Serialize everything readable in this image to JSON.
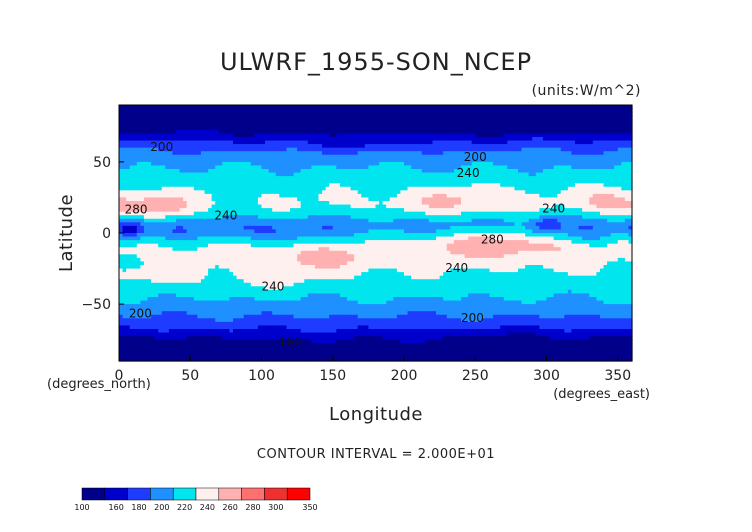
{
  "chart_data": {
    "type": "heatmap",
    "title": "ULWRF_1955-SON_NCEP",
    "units_label": "(units:W/m^2)",
    "xlabel": "Longitude",
    "ylabel": "Latitude",
    "x_unit_label": "(degrees_east)",
    "y_unit_label": "(degrees_north)",
    "xlim": [
      0,
      360
    ],
    "ylim": [
      -90,
      90
    ],
    "x_ticks": [
      0,
      50,
      100,
      150,
      200,
      250,
      300,
      350
    ],
    "y_ticks": [
      -50,
      0,
      50
    ],
    "contour_interval_text": "CONTOUR INTERVAL = 2.000E+01",
    "colorbar": {
      "levels": [
        100,
        160,
        180,
        200,
        220,
        240,
        260,
        280,
        300,
        350
      ],
      "colors": [
        "#00008b",
        "#0000cd",
        "#1e3cff",
        "#1e90ff",
        "#00e5ee",
        "#fff0f0",
        "#ffb0b0",
        "#ff7070",
        "#ee3030",
        "#ff0000"
      ]
    },
    "contour_labels": [
      {
        "text": "200",
        "lon": 30,
        "lat": 60
      },
      {
        "text": "200",
        "lon": 250,
        "lat": 53
      },
      {
        "text": "240",
        "lon": 245,
        "lat": 42
      },
      {
        "text": "280",
        "lon": 12,
        "lat": 16
      },
      {
        "text": "240",
        "lon": 75,
        "lat": 12
      },
      {
        "text": "240",
        "lon": 305,
        "lat": 17
      },
      {
        "text": "280",
        "lon": 262,
        "lat": -5
      },
      {
        "text": "240",
        "lon": 237,
        "lat": -25
      },
      {
        "text": "240",
        "lon": 108,
        "lat": -38
      },
      {
        "text": "200",
        "lon": 15,
        "lat": -57
      },
      {
        "text": "200",
        "lon": 248,
        "lat": -60
      },
      {
        "text": "160",
        "lon": 120,
        "lat": -77
      }
    ]
  }
}
